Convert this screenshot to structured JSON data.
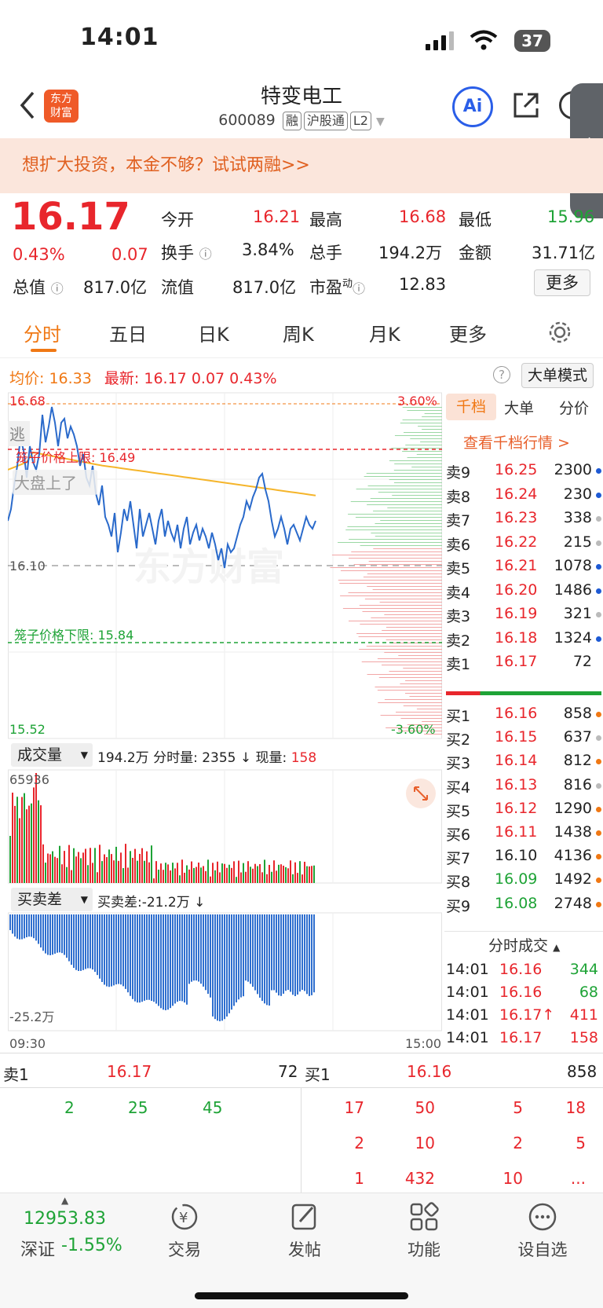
{
  "status": {
    "time": "14:01",
    "battery": "37"
  },
  "header": {
    "title": "特变电工",
    "code": "600089",
    "tags": [
      "融",
      "沪股通",
      "L2"
    ],
    "logo_text": "东方\n财富"
  },
  "banner": {
    "text": "想扩大投资，本金不够？试试两融>>"
  },
  "quote": {
    "price": "16.17",
    "pct": "0.43%",
    "chg": "0.07",
    "open_label": "今开",
    "open": "16.21",
    "high_label": "最高",
    "high": "16.68",
    "low_label": "最低",
    "low": "15.96",
    "turnover_label": "换手",
    "turnover": "3.84%",
    "volume_label": "总手",
    "volume": "194.2万",
    "amount_label": "金额",
    "amount": "31.71亿",
    "mcap_label": "总值",
    "mcap": "817.0亿",
    "float_label": "流值",
    "float": "817.0亿",
    "pe_label": "市盈",
    "pe_sup": "动",
    "pe": "12.83",
    "more_button": "更多"
  },
  "tabs": [
    "分时",
    "五日",
    "日K",
    "周K",
    "月K",
    "更多"
  ],
  "chart": {
    "avg_label": "均价:",
    "avg": "16.33",
    "last_label": "最新:",
    "last": "16.17",
    "last_chg": "0.07",
    "last_pct": "0.43%",
    "mode_button": "大单模式",
    "top_price": "16.68",
    "top_pct": "3.60%",
    "base_price": "16.10",
    "bottom_price": "15.52",
    "bottom_pct": "-3.60%",
    "upper_limit": "笼子价格上限: 16.49",
    "lower_limit": "笼子价格下限: 15.84",
    "flee_tag": "逃",
    "market_tag": "大盘上了",
    "watermark": "东方财富",
    "start_time": "09:30",
    "end_time": "15:00"
  },
  "volume_panel": {
    "selector": "成交量",
    "total": "194.2万",
    "fs_label": "分时量:",
    "fs_value": "2355",
    "now_label": "现量:",
    "now_value": "158",
    "max": "65936"
  },
  "diff_panel": {
    "selector": "买卖差",
    "label": "买卖差:",
    "value": "-21.2万",
    "min": "-25.2万"
  },
  "side_tabs": [
    "千档",
    "大单",
    "分价"
  ],
  "side_link": "查看千档行情 >",
  "asks": [
    {
      "label": "卖9",
      "price": "16.25",
      "vol": "2300",
      "dot": "#1e5ad4"
    },
    {
      "label": "卖8",
      "price": "16.24",
      "vol": "230",
      "dot": "#1e5ad4"
    },
    {
      "label": "卖7",
      "price": "16.23",
      "vol": "338",
      "dot": "#bbbbbb"
    },
    {
      "label": "卖6",
      "price": "16.22",
      "vol": "215",
      "dot": "#bbbbbb"
    },
    {
      "label": "卖5",
      "price": "16.21",
      "vol": "1078",
      "dot": "#1e5ad4"
    },
    {
      "label": "卖4",
      "price": "16.20",
      "vol": "1486",
      "dot": "#1e5ad4"
    },
    {
      "label": "卖3",
      "price": "16.19",
      "vol": "321",
      "dot": "#bbbbbb"
    },
    {
      "label": "卖2",
      "price": "16.18",
      "vol": "1324",
      "dot": "#1e5ad4"
    },
    {
      "label": "卖1",
      "price": "16.17",
      "vol": "72",
      "dot": ""
    }
  ],
  "bids": [
    {
      "label": "买1",
      "price": "16.16",
      "vol": "858",
      "dot": "#f07814",
      "color": "#e8262c"
    },
    {
      "label": "买2",
      "price": "16.15",
      "vol": "637",
      "dot": "#bbbbbb",
      "color": "#e8262c"
    },
    {
      "label": "买3",
      "price": "16.14",
      "vol": "812",
      "dot": "#f07814",
      "color": "#e8262c"
    },
    {
      "label": "买4",
      "price": "16.13",
      "vol": "816",
      "dot": "#bbbbbb",
      "color": "#e8262c"
    },
    {
      "label": "买5",
      "price": "16.12",
      "vol": "1290",
      "dot": "#f07814",
      "color": "#e8262c"
    },
    {
      "label": "买6",
      "price": "16.11",
      "vol": "1438",
      "dot": "#f07814",
      "color": "#e8262c"
    },
    {
      "label": "买7",
      "price": "16.10",
      "vol": "4136",
      "dot": "#f07814",
      "color": "#222222"
    },
    {
      "label": "买8",
      "price": "16.09",
      "vol": "1492",
      "dot": "#f07814",
      "color": "#1ea336"
    },
    {
      "label": "买9",
      "price": "16.08",
      "vol": "2748",
      "dot": "#f07814",
      "color": "#1ea336"
    }
  ],
  "ticks_title": "分时成交",
  "ticks": [
    {
      "time": "14:01",
      "price": "16.16",
      "vol": "344",
      "volColor": "#1ea336"
    },
    {
      "time": "14:01",
      "price": "16.16",
      "vol": "68",
      "volColor": "#1ea336"
    },
    {
      "time": "14:01",
      "price": "16.17↑",
      "vol": "411",
      "volColor": "#e8262c"
    },
    {
      "time": "14:01",
      "price": "16.17",
      "vol": "158",
      "volColor": "#e8262c"
    }
  ],
  "bottom_queue": {
    "sell_label": "卖1",
    "sell_price": "16.17",
    "sell_vol": "72",
    "buy_label": "买1",
    "buy_price": "16.16",
    "buy_vol": "858",
    "sell_orders": [
      "2",
      "25",
      "45"
    ],
    "buy_orders": [
      "17",
      "50",
      "5",
      "18",
      "2",
      "10",
      "2",
      "5",
      "1",
      "432",
      "10",
      "..."
    ]
  },
  "nav": {
    "index_value": "12953.83",
    "index_name": "深证",
    "index_pct": "-1.55%",
    "items": [
      "交易",
      "发帖",
      "功能",
      "设自选"
    ]
  }
}
